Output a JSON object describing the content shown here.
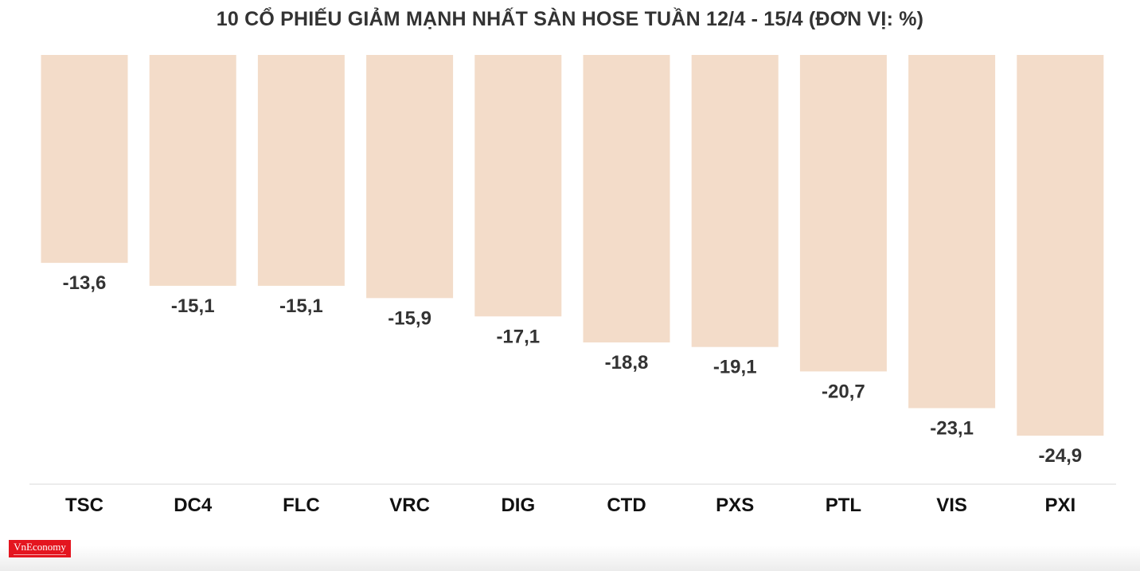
{
  "chart_data": {
    "type": "bar",
    "title": "10 CỔ PHIẾU GIẢM MẠNH NHẤT SÀN HOSE TUẦN 12/4 - 15/4 (ĐƠN VỊ: %)",
    "categories": [
      "TSC",
      "DC4",
      "FLC",
      "VRC",
      "DIG",
      "CTD",
      "PXS",
      "PTL",
      "VIS",
      "PXI"
    ],
    "values": [
      -13.6,
      -15.1,
      -15.1,
      -15.9,
      -17.1,
      -18.8,
      -19.1,
      -20.7,
      -23.1,
      -24.9
    ],
    "value_labels": [
      "-13,6",
      "-15,1",
      "-15,1",
      "-15,9",
      "-17,1",
      "-18,8",
      "-19,1",
      "-20,7",
      "-23,1",
      "-24,9"
    ],
    "ylim": [
      -28,
      0
    ],
    "grid": false,
    "bar_color": "#f3dcc9",
    "axis_color": "#e6e6e6"
  },
  "logo": {
    "text": "VnEconomy",
    "color": "#e4151f"
  }
}
